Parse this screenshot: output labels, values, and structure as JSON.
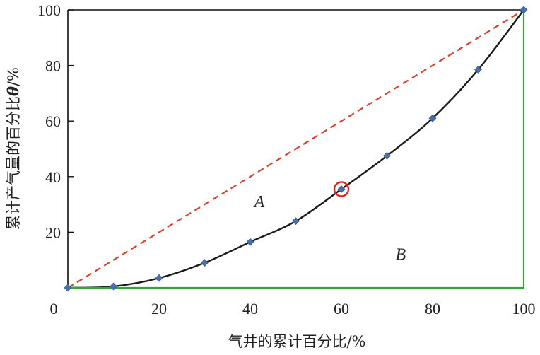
{
  "chart_data": {
    "type": "line",
    "xlabel": "气井的累计百分比/%",
    "ylabel": "累计产气量的百分比θ/%",
    "ylabel_parts": {
      "before": "累计产气量的百分比",
      "symbol": "θ",
      "after": "/%"
    },
    "xlim": [
      0,
      100
    ],
    "ylim": [
      0,
      100
    ],
    "x_ticks": [
      0,
      20,
      40,
      60,
      80,
      100
    ],
    "y_ticks": [
      20,
      40,
      60,
      80,
      100
    ],
    "grid": false,
    "series": [
      {
        "type": "line",
        "style": "dashed",
        "color": "#d9412e",
        "x": [
          0,
          100
        ],
        "y": [
          0,
          100
        ]
      },
      {
        "type": "line",
        "style": "solid",
        "color": "#1a1a1a",
        "marker": "diamond",
        "marker_color": "#4a6fa5",
        "x": [
          0,
          10,
          20,
          30,
          40,
          50,
          60,
          70,
          80,
          90,
          100
        ],
        "y": [
          0,
          0.5,
          3.5,
          9,
          16.5,
          24,
          35.5,
          47.5,
          61,
          78.5,
          100
        ]
      },
      {
        "type": "line",
        "style": "solid",
        "color": "#3aa23a",
        "x": [
          0,
          100,
          100
        ],
        "y": [
          0,
          0,
          100
        ]
      }
    ],
    "highlight": {
      "x": 60,
      "y": 35.5,
      "shape": "circle",
      "color": "#e0231c"
    },
    "annotations": [
      {
        "text": "A",
        "x": 42,
        "y": 29
      },
      {
        "text": "B",
        "x": 73,
        "y": 10
      }
    ]
  }
}
